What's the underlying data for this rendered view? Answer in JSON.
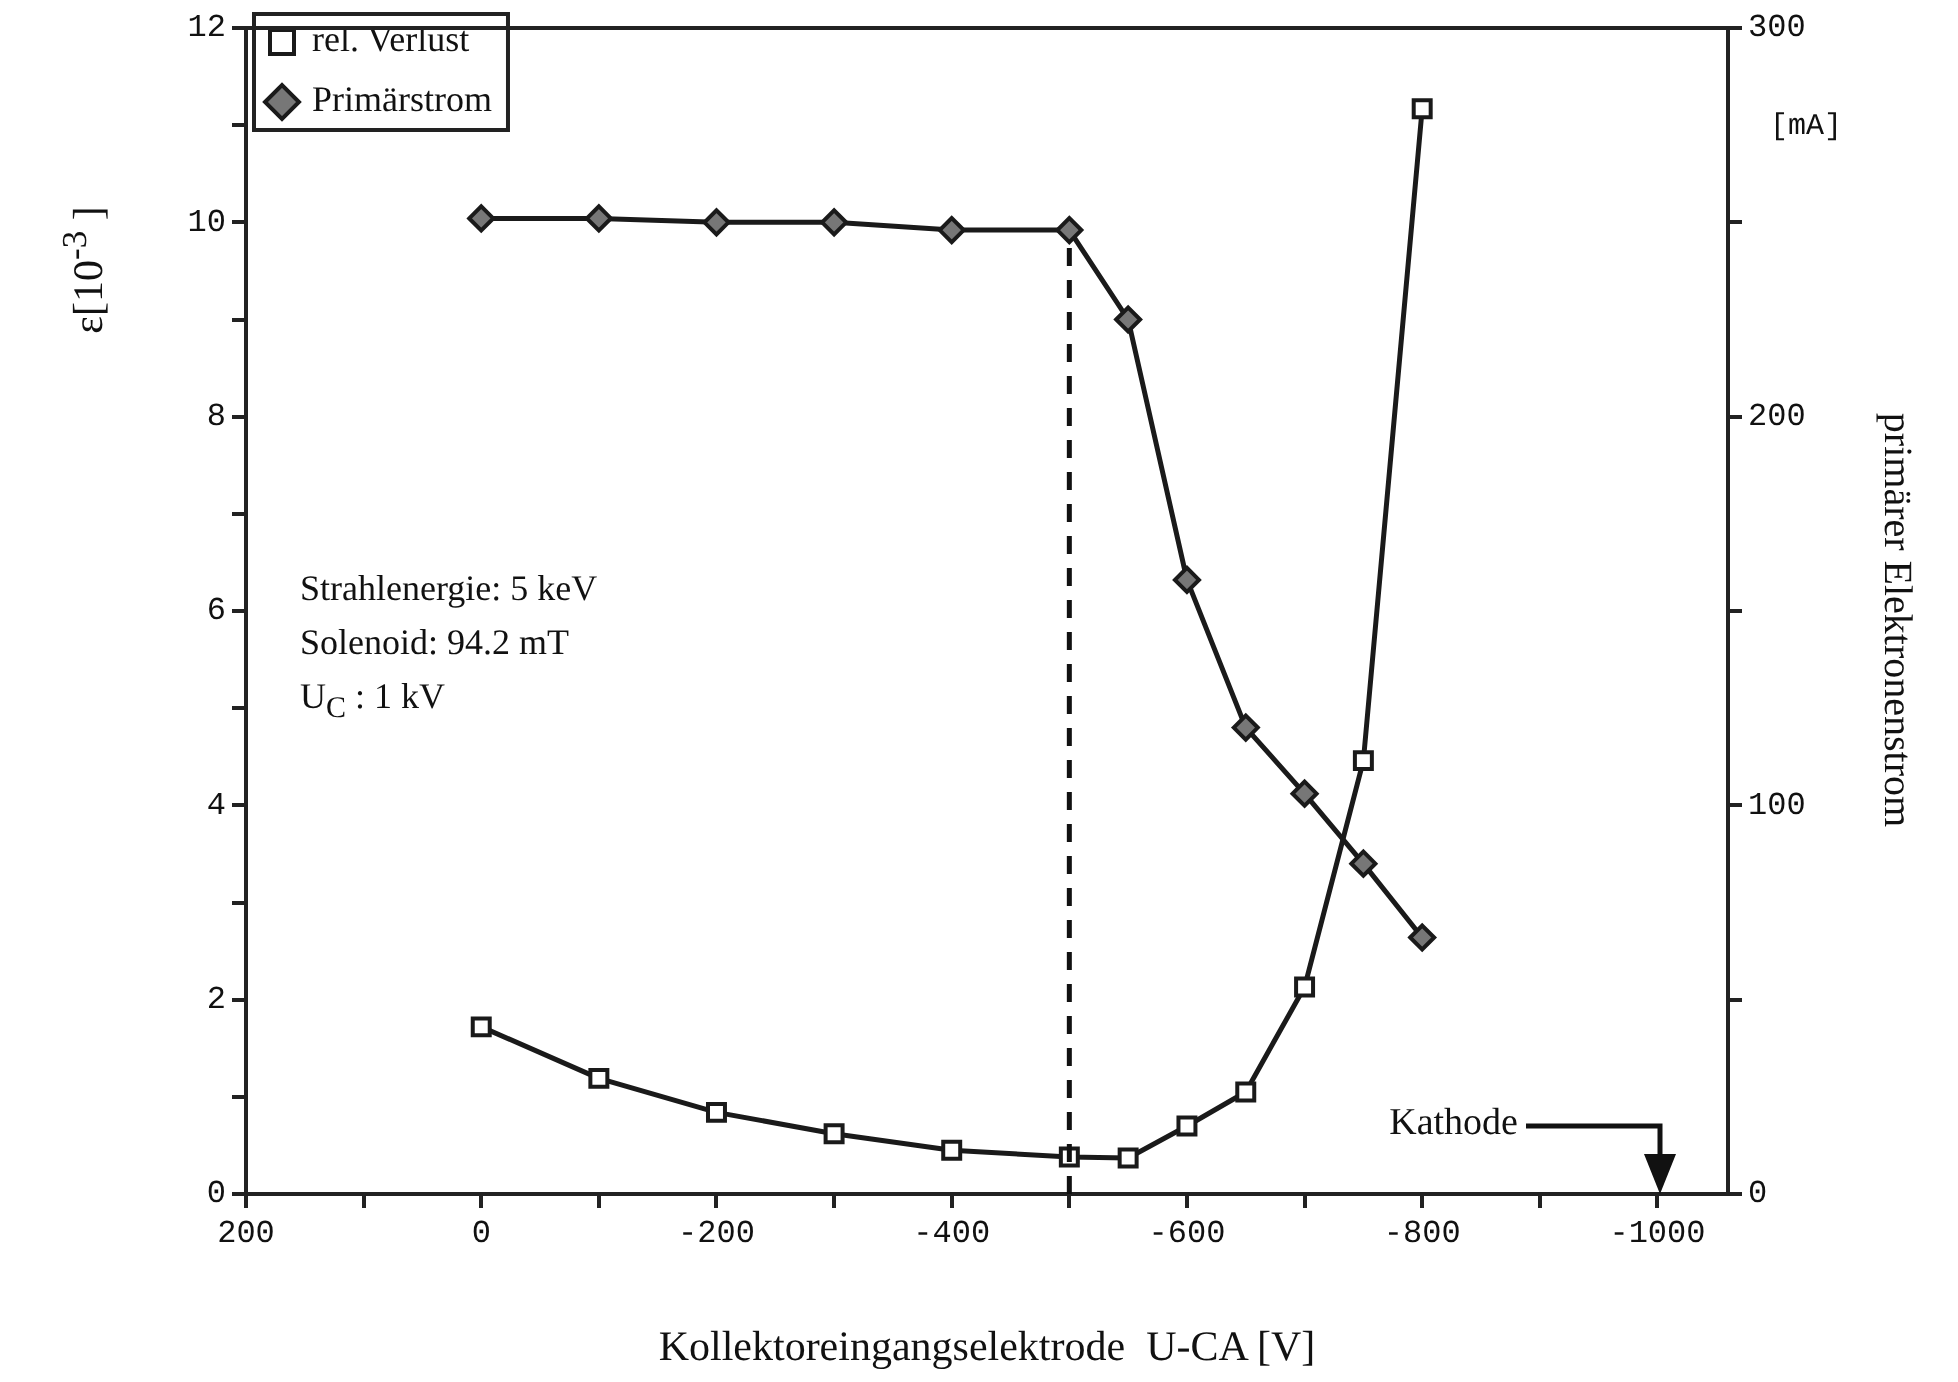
{
  "chart_data": {
    "type": "line",
    "xlabel": "Kollektoreingangselektrode  U-CA [V]",
    "ylabel": "ε[10$^{-3}$ ]",
    "y2label": "primärer Elektronenstrom",
    "x": [
      0,
      -100,
      -200,
      -300,
      -400,
      -500,
      -550,
      -600,
      -650,
      -700,
      -750,
      -800
    ],
    "series": [
      {
        "name": "rel. Verlust",
        "color": "#1a1a1a",
        "marker": "square",
        "values": [
          1.72,
          1.19,
          0.84,
          0.62,
          0.45,
          0.38,
          0.37,
          0.7,
          1.05,
          2.13,
          4.46,
          11.17
        ]
      },
      {
        "name": "Primärstrom",
        "color": "#1a1a1a",
        "marker": "diamond",
        "axis": "y2",
        "values": [
          251,
          251,
          250,
          250,
          248,
          248,
          225,
          158,
          120,
          103,
          85,
          66
        ]
      }
    ],
    "xlim": [
      200,
      -1060
    ],
    "xticks": [
      200,
      {
        "value": 100,
        "label": null
      },
      0,
      {
        "value": -100,
        "label": null
      },
      -200,
      {
        "value": -300,
        "label": null
      },
      -400,
      {
        "value": -500,
        "label": null
      },
      -600,
      {
        "value": -700,
        "label": null
      },
      -800,
      {
        "value": -900,
        "label": null
      },
      -1000
    ],
    "ylim": [
      0,
      12
    ],
    "yticks": [
      0,
      {
        "value": 1,
        "label": null
      },
      2,
      {
        "value": 3,
        "label": null
      },
      4,
      {
        "value": 5,
        "label": null
      },
      6,
      {
        "value": 7,
        "label": null
      },
      8,
      {
        "value": 9,
        "label": null
      },
      10,
      {
        "value": 11,
        "label": null
      },
      12
    ],
    "y2lim": [
      0,
      300
    ],
    "y2ticks": [
      0,
      {
        "value": 50,
        "label": null
      },
      100,
      {
        "value": 150,
        "label": null
      },
      200,
      {
        "value": 250,
        "label": null
      },
      300
    ],
    "ref_lines": [
      {
        "axis": "x",
        "value": -500,
        "line_style": "dashed"
      }
    ],
    "annotations": [
      "[mA]",
      "Strahlenergie:  5 keV",
      "Solenoid:  94.2 mT",
      "U$_{C}$ :  1 kV",
      "Kathode"
    ],
    "legend": "top left",
    "grid": false,
    "line_style": "solid"
  }
}
